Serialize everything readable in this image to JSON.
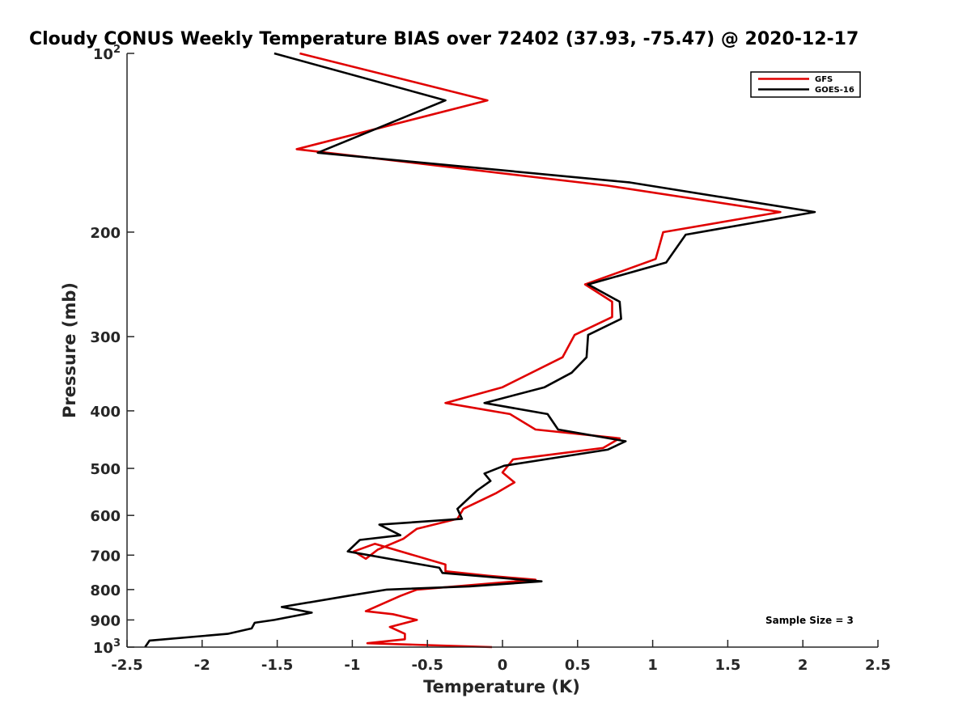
{
  "chart_data": {
    "type": "line",
    "title": "Cloudy CONUS Weekly Temperature BIAS over 72402 (37.93, -75.47) @ 2020-12-17",
    "xlabel": "Temperature (K)",
    "ylabel": "Pressure (mb)",
    "xlim": [
      -2.5,
      2.5
    ],
    "ylim": [
      100,
      1000
    ],
    "y_scale": "log",
    "y_reversed": true,
    "grid": false,
    "legend_position": "top-right",
    "x_ticks": [
      -2.5,
      -2,
      -1.5,
      -1,
      -0.5,
      0,
      0.5,
      1,
      1.5,
      2,
      2.5
    ],
    "x_tick_labels": [
      "-2.5",
      "-2",
      "-1.5",
      "-1",
      "-0.5",
      "0",
      "0.5",
      "1",
      "1.5",
      "2",
      "2.5"
    ],
    "y_ticks": [
      100,
      200,
      300,
      400,
      500,
      600,
      700,
      800,
      900,
      1000
    ],
    "y_tick_labels": [
      {
        "base": "10",
        "exp": "2"
      },
      {
        "base": "200",
        "exp": ""
      },
      {
        "base": "300",
        "exp": ""
      },
      {
        "base": "400",
        "exp": ""
      },
      {
        "base": "500",
        "exp": ""
      },
      {
        "base": "600",
        "exp": ""
      },
      {
        "base": "700",
        "exp": ""
      },
      {
        "base": "800",
        "exp": ""
      },
      {
        "base": "900",
        "exp": ""
      },
      {
        "base": "10",
        "exp": "3"
      }
    ],
    "annotation": "Sample Size = 3",
    "series": [
      {
        "name": "GFS",
        "color": "#e00000",
        "x": [
          -1.35,
          -0.1,
          -1.37,
          0.7,
          1.85,
          1.07,
          1.02,
          0.55,
          0.73,
          0.73,
          0.48,
          0.4,
          0.0,
          -0.38,
          0.05,
          0.22,
          0.78,
          0.67,
          0.07,
          0.0,
          0.08,
          -0.04,
          -0.26,
          -0.3,
          -0.57,
          -0.66,
          -0.83,
          -0.91,
          -0.99,
          -0.85,
          -0.38,
          -0.38,
          -0.1,
          0.22,
          -0.57,
          -0.68,
          -0.91,
          -0.73,
          -0.57,
          -0.75,
          -0.65,
          -0.65,
          -0.9,
          -0.07
        ],
        "y": [
          100,
          120,
          145,
          167,
          185,
          200,
          222,
          245,
          262,
          278,
          298,
          325,
          365,
          388,
          405,
          430,
          445,
          462,
          483,
          508,
          528,
          550,
          585,
          608,
          632,
          657,
          685,
          710,
          690,
          670,
          726,
          745,
          758,
          770,
          800,
          820,
          870,
          880,
          900,
          925,
          950,
          970,
          985,
          1000
        ]
      },
      {
        "name": "GOES-16",
        "color": "#000000",
        "x": [
          -1.52,
          -0.38,
          -1.23,
          0.85,
          2.08,
          1.22,
          1.09,
          0.57,
          0.78,
          0.79,
          0.57,
          0.56,
          0.46,
          0.28,
          -0.12,
          0.3,
          0.37,
          0.82,
          0.7,
          0.01,
          -0.12,
          -0.08,
          -0.17,
          -0.3,
          -0.27,
          -0.82,
          -0.68,
          -0.95,
          -1.03,
          -0.42,
          -0.4,
          0.26,
          -0.22,
          -0.77,
          -1.03,
          -1.47,
          -1.27,
          -1.52,
          -1.65,
          -1.67,
          -1.83,
          -2.35,
          -2.38
        ],
        "y": [
          100,
          120,
          147,
          165,
          185,
          202,
          225,
          245,
          262,
          280,
          298,
          325,
          345,
          365,
          388,
          405,
          430,
          450,
          465,
          495,
          510,
          525,
          545,
          585,
          608,
          622,
          648,
          660,
          690,
          735,
          750,
          775,
          790,
          800,
          820,
          856,
          875,
          900,
          910,
          930,
          950,
          975,
          1000
        ]
      }
    ]
  }
}
